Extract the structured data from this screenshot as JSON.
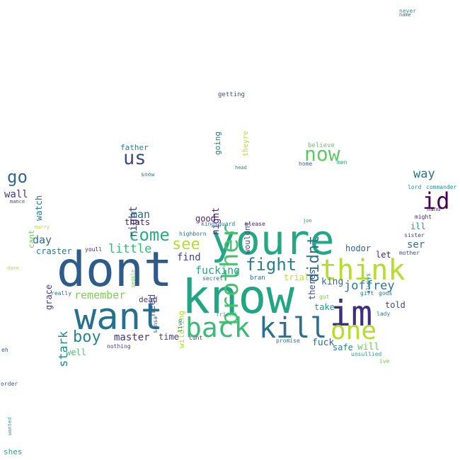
{
  "words": [
    {
      "text": "know",
      "color": "#21a685"
    },
    {
      "text": "dont",
      "color": "#2e5c8a"
    },
    {
      "text": "youre",
      "color": "#22a884"
    },
    {
      "text": "want",
      "color": "#25708e"
    },
    {
      "text": "im",
      "color": "#3e2f7f"
    },
    {
      "text": "think",
      "color": "#b5de2b"
    },
    {
      "text": "brother",
      "color": "#48c16e"
    },
    {
      "text": "back",
      "color": "#3bbb75"
    },
    {
      "text": "kill",
      "color": "#2d6f8e"
    },
    {
      "text": "one",
      "color": "#b5de2b"
    },
    {
      "text": "id",
      "color": "#440154"
    },
    {
      "text": "us",
      "color": "#3e4a89"
    },
    {
      "text": "go",
      "color": "#31668e"
    },
    {
      "text": "now",
      "color": "#5ec962"
    },
    {
      "text": "didnt",
      "color": "#2d708e"
    },
    {
      "text": "fight",
      "color": "#27808e"
    },
    {
      "text": "come",
      "color": "#29af7f"
    },
    {
      "text": "see",
      "color": "#b5de2b"
    },
    {
      "text": "boy",
      "color": "#23898e"
    },
    {
      "text": "joffrey",
      "color": "#2a788e"
    },
    {
      "text": "little",
      "color": "#35b779"
    },
    {
      "text": "remember",
      "color": "#7ad151"
    },
    {
      "text": "stark",
      "color": "#238a8d"
    },
    {
      "text": "way",
      "color": "#2c728e"
    },
    {
      "text": "right",
      "color": "#433e85"
    },
    {
      "text": "night",
      "color": "#482878"
    },
    {
      "text": "wouldnt",
      "color": "#3e4989"
    },
    {
      "text": "man",
      "color": "#31688e"
    },
    {
      "text": "day",
      "color": "#31688e"
    },
    {
      "text": "master",
      "color": "#46337f"
    },
    {
      "text": "fucking",
      "color": "#22a884"
    },
    {
      "text": "need",
      "color": "#3b528b"
    },
    {
      "text": "wall",
      "color": "#453781"
    },
    {
      "text": "watch",
      "color": "#2a788e"
    },
    {
      "text": "find",
      "color": "#414487"
    },
    {
      "text": "trial",
      "color": "#c8e020"
    },
    {
      "text": "king",
      "color": "#2d708e"
    },
    {
      "text": "ser",
      "color": "#2c728e"
    },
    {
      "text": "ill",
      "color": "#1f9e89"
    },
    {
      "text": "hodor",
      "color": "#32648e"
    },
    {
      "text": "let",
      "color": "#482878"
    },
    {
      "text": "told",
      "color": "#404688"
    },
    {
      "text": "take",
      "color": "#1f9e89"
    },
    {
      "text": "fuck",
      "color": "#31688e"
    },
    {
      "text": "safe",
      "color": "#26828e"
    },
    {
      "text": "will",
      "color": "#6ccd5a"
    },
    {
      "text": "theres",
      "color": "#3b528b"
    },
    {
      "text": "dead",
      "color": "#453781"
    },
    {
      "text": "wildling",
      "color": "#b5de2b"
    },
    {
      "text": "time",
      "color": "#433e85"
    },
    {
      "text": "going",
      "color": "#2a788e"
    },
    {
      "text": "good",
      "color": "#481f70"
    },
    {
      "text": "thats",
      "color": "#482475"
    },
    {
      "text": "craster",
      "color": "#2a788e"
    },
    {
      "text": "grace",
      "color": "#433e85"
    },
    {
      "text": "well",
      "color": "#4ac16d"
    },
    {
      "text": "cant",
      "color": "#6ece58"
    },
    {
      "text": "father",
      "color": "#25848e"
    },
    {
      "text": "getting",
      "color": "#3b528b"
    },
    {
      "text": "theyre",
      "color": "#b5de2b"
    },
    {
      "text": "believe",
      "color": "#5ec962"
    },
    {
      "text": "home",
      "color": "#2d708e"
    },
    {
      "text": "men",
      "color": "#1fa187"
    },
    {
      "text": "snow",
      "color": "#2c728e"
    },
    {
      "text": "head",
      "color": "#26828e"
    },
    {
      "text": "kingsguard",
      "color": "#2a788e"
    },
    {
      "text": "please",
      "color": "#482878"
    },
    {
      "text": "highborn",
      "color": "#2d708e"
    },
    {
      "text": "bran",
      "color": "#31688e"
    },
    {
      "text": "secret",
      "color": "#31688e"
    },
    {
      "text": "youll",
      "color": "#481f70"
    },
    {
      "text": "really",
      "color": "#2c728e"
    },
    {
      "text": "people",
      "color": "#7ad151"
    },
    {
      "text": "sansa",
      "color": "#3e4a89"
    },
    {
      "text": "live",
      "color": "#2a788e"
    },
    {
      "text": "cunt",
      "color": "#433e85"
    },
    {
      "text": "friend",
      "color": "#29af7f"
    },
    {
      "text": "promise",
      "color": "#2c728e"
    },
    {
      "text": "nothing",
      "color": "#433e85"
    },
    {
      "text": "got",
      "color": "#7ad151"
    },
    {
      "text": "gift",
      "color": "#2c728e"
    },
    {
      "text": "gods",
      "color": "#2c728e"
    },
    {
      "text": "lady",
      "color": "#26828e"
    },
    {
      "text": "always",
      "color": "#26828e"
    },
    {
      "text": "unsullied",
      "color": "#22a884"
    },
    {
      "text": "ive",
      "color": "#7ad151"
    },
    {
      "text": "lord",
      "color": "#21918c"
    },
    {
      "text": "commander",
      "color": "#21918c"
    },
    {
      "text": "hand",
      "color": "#481f70"
    },
    {
      "text": "might",
      "color": "#481f70"
    },
    {
      "text": "sister",
      "color": "#404688"
    },
    {
      "text": "mother",
      "color": "#3e4a89"
    },
    {
      "text": "jon",
      "color": "#21918c"
    },
    {
      "text": "marry",
      "color": "#b5de2b"
    },
    {
      "text": "mance",
      "color": "#3e4a89"
    },
    {
      "text": "done",
      "color": "#b5de2b"
    },
    {
      "text": "never",
      "color": "#1fa187"
    },
    {
      "text": "name",
      "color": "#2c728e"
    },
    {
      "text": "eh",
      "color": "#3b528b"
    },
    {
      "text": "order",
      "color": "#3b528b"
    },
    {
      "text": "wanted",
      "color": "#2a9d8f"
    },
    {
      "text": "shes",
      "color": "#31a48a"
    }
  ]
}
